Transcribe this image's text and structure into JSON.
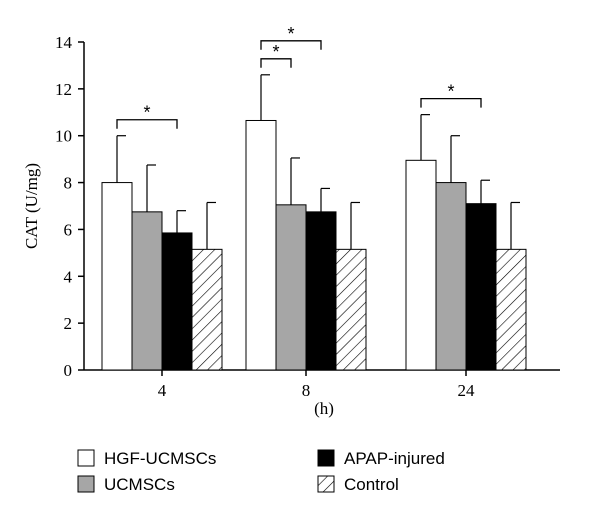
{
  "chart_data": {
    "type": "bar",
    "title": "",
    "xlabel": "(h)",
    "ylabel": "CAT (U/mg)",
    "ylim": [
      0,
      14
    ],
    "yticks": [
      "0",
      "2",
      "4",
      "6",
      "8",
      "10",
      "12",
      "14"
    ],
    "categories": [
      "4",
      "8",
      "24"
    ],
    "series": [
      {
        "name": "HGF-UCMSCs",
        "values": [
          8.0,
          10.65,
          8.95
        ],
        "errors": [
          2.0,
          1.95,
          1.95
        ],
        "fill": "white"
      },
      {
        "name": "UCMSCs",
        "values": [
          6.75,
          7.05,
          8.0
        ],
        "errors": [
          2.0,
          2.0,
          2.0
        ],
        "fill": "gray"
      },
      {
        "name": "APAP-injured",
        "values": [
          5.85,
          6.75,
          7.1
        ],
        "errors": [
          0.95,
          1.0,
          1.0
        ],
        "fill": "black"
      },
      {
        "name": "Control",
        "values": [
          5.15,
          5.15,
          5.15
        ],
        "errors": [
          2.0,
          2.0,
          2.0
        ],
        "fill": "hatched"
      }
    ],
    "significance": [
      {
        "category": "4",
        "from": "HGF-UCMSCs",
        "to": "APAP-injured",
        "label": "*"
      },
      {
        "category": "8",
        "from": "HGF-UCMSCs",
        "to": "UCMSCs",
        "label": "*"
      },
      {
        "category": "8",
        "from": "HGF-UCMSCs",
        "to": "APAP-injured",
        "label": "*"
      },
      {
        "category": "24",
        "from": "HGF-UCMSCs",
        "to": "APAP-injured",
        "label": "*"
      }
    ],
    "legend_position": "bottom",
    "grid": false,
    "colors": {
      "white": "#ffffff",
      "gray": "#a6a6a6",
      "black": "#000000",
      "hatch": "#000000"
    }
  }
}
